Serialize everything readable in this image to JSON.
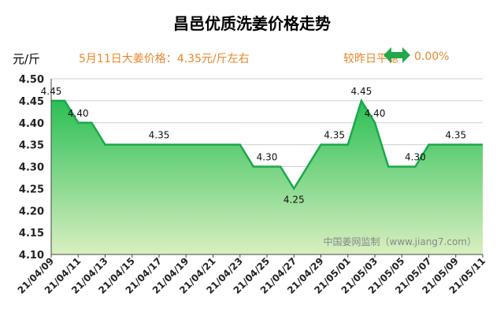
{
  "title": "昌邑优质洗姜价格走势",
  "unit": "元/斤",
  "note": "5月11日大姜价格：4.35元/斤左右",
  "change": {
    "label": "较昨日平稳",
    "value": "0.00%",
    "icon": "left-right-arrow-icon"
  },
  "watermark": "中国姜网监制（www.jiang7.com）",
  "colors": {
    "line": "#1aa84a",
    "fill_top": "#2bbf55",
    "fill_bottom": "#d9efc0",
    "accent": "#e8862b",
    "grid": "#d0d0d0",
    "arrow": "#21a84a"
  },
  "chart_data": {
    "type": "area",
    "x_ticks": [
      "21/04/09",
      "21/04/11",
      "21/04/13",
      "21/04/15",
      "21/04/17",
      "21/04/19",
      "21/04/21",
      "21/04/23",
      "21/04/25",
      "21/04/27",
      "21/04/29",
      "21/05/01",
      "21/05/03",
      "21/05/05",
      "21/05/07",
      "21/05/09",
      "21/05/11"
    ],
    "y_ticks": [
      "4.10",
      "4.15",
      "4.20",
      "4.25",
      "4.30",
      "4.35",
      "4.40",
      "4.45",
      "4.50"
    ],
    "ylim": [
      4.1,
      4.5
    ],
    "xlim": [
      "2021-04-09",
      "2021-05-11"
    ],
    "grid": true,
    "series": [
      {
        "x": [
          "2021-04-09",
          "2021-04-10",
          "2021-04-11",
          "2021-04-12",
          "2021-04-13",
          "2021-04-14",
          "2021-04-15",
          "2021-04-16",
          "2021-04-17",
          "2021-04-18",
          "2021-04-19",
          "2021-04-20",
          "2021-04-21",
          "2021-04-22",
          "2021-04-23",
          "2021-04-24",
          "2021-04-25",
          "2021-04-26",
          "2021-04-27",
          "2021-04-28",
          "2021-04-29",
          "2021-04-30",
          "2021-05-01",
          "2021-05-02",
          "2021-05-03",
          "2021-05-04",
          "2021-05-05",
          "2021-05-06",
          "2021-05-07",
          "2021-05-08",
          "2021-05-09",
          "2021-05-10",
          "2021-05-11"
        ],
        "values": [
          4.45,
          4.45,
          4.4,
          4.4,
          4.35,
          4.35,
          4.35,
          4.35,
          4.35,
          4.35,
          4.35,
          4.35,
          4.35,
          4.35,
          4.35,
          4.3,
          4.3,
          4.3,
          4.25,
          4.3,
          4.35,
          4.35,
          4.35,
          4.45,
          4.4,
          4.3,
          4.3,
          4.3,
          4.35,
          4.35,
          4.35,
          4.35,
          4.35
        ]
      }
    ],
    "data_labels": [
      {
        "x": "2021-04-09",
        "label": "4.45"
      },
      {
        "x": "2021-04-11",
        "label": "4.40"
      },
      {
        "x": "2021-04-17",
        "label": "4.35"
      },
      {
        "x": "2021-04-25",
        "label": "4.30"
      },
      {
        "x": "2021-04-27",
        "label": "4.25",
        "below": true
      },
      {
        "x": "2021-04-30",
        "label": "4.35"
      },
      {
        "x": "2021-05-02",
        "label": "4.45"
      },
      {
        "x": "2021-05-03",
        "label": "4.40"
      },
      {
        "x": "2021-05-06",
        "label": "4.30"
      },
      {
        "x": "2021-05-09",
        "label": "4.35"
      }
    ]
  }
}
